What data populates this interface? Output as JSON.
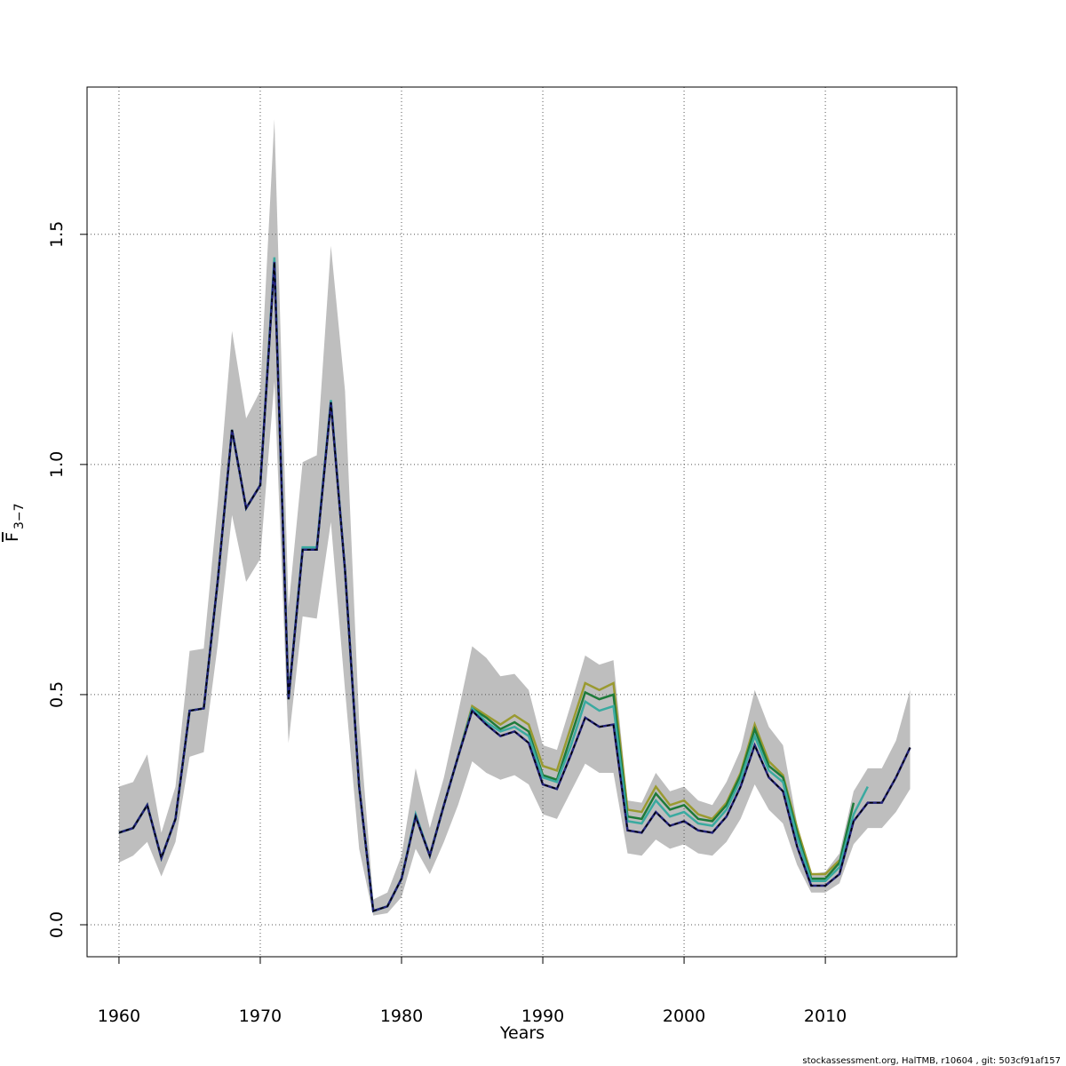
{
  "chart_data": {
    "type": "line",
    "x_label": "Years",
    "y_label": "F",
    "y_label_subscript": "3−7",
    "footer": "stockassessment.org, HalTMB, r10604 , git: 503cf91af157",
    "x": [
      1960,
      1961,
      1962,
      1963,
      1964,
      1965,
      1966,
      1967,
      1968,
      1969,
      1970,
      1971,
      1972,
      1973,
      1974,
      1975,
      1976,
      1977,
      1978,
      1979,
      1980,
      1981,
      1982,
      1983,
      1984,
      1985,
      1986,
      1987,
      1988,
      1989,
      1990,
      1991,
      1992,
      1993,
      1994,
      1995,
      1996,
      1997,
      1998,
      1999,
      2000,
      2001,
      2002,
      2003,
      2004,
      2005,
      2006,
      2007,
      2008,
      2009,
      2010,
      2011,
      2012,
      2013,
      2014,
      2015,
      2016
    ],
    "band": {
      "color": "#bebebe",
      "upper": [
        0.3,
        0.31,
        0.37,
        0.2,
        0.3,
        0.595,
        0.6,
        0.92,
        1.29,
        1.1,
        1.16,
        1.75,
        0.69,
        1.005,
        1.02,
        1.475,
        1.16,
        0.44,
        0.055,
        0.07,
        0.15,
        0.34,
        0.21,
        0.32,
        0.46,
        0.605,
        0.58,
        0.54,
        0.545,
        0.51,
        0.39,
        0.38,
        0.48,
        0.585,
        0.565,
        0.575,
        0.27,
        0.265,
        0.33,
        0.29,
        0.3,
        0.27,
        0.26,
        0.31,
        0.38,
        0.51,
        0.43,
        0.39,
        0.22,
        0.11,
        0.115,
        0.155,
        0.29,
        0.34,
        0.34,
        0.4,
        0.51
      ],
      "lower": [
        0.135,
        0.15,
        0.18,
        0.105,
        0.18,
        0.365,
        0.375,
        0.61,
        0.89,
        0.745,
        0.795,
        1.18,
        0.395,
        0.67,
        0.665,
        0.875,
        0.51,
        0.165,
        0.02,
        0.025,
        0.06,
        0.165,
        0.11,
        0.18,
        0.26,
        0.355,
        0.33,
        0.315,
        0.325,
        0.305,
        0.24,
        0.23,
        0.29,
        0.35,
        0.33,
        0.33,
        0.155,
        0.15,
        0.185,
        0.165,
        0.175,
        0.155,
        0.15,
        0.18,
        0.23,
        0.305,
        0.25,
        0.22,
        0.13,
        0.07,
        0.07,
        0.09,
        0.175,
        0.21,
        0.21,
        0.245,
        0.295
      ]
    },
    "series": [
      {
        "color": "#9a9a30",
        "values": [
          0.2,
          0.21,
          0.26,
          0.145,
          0.23,
          0.465,
          0.47,
          0.75,
          1.075,
          0.905,
          0.955,
          1.44,
          0.49,
          0.815,
          0.815,
          1.135,
          0.77,
          0.3,
          0.03,
          0.04,
          0.1,
          0.235,
          0.15,
          0.26,
          0.365,
          0.475,
          0.455,
          0.435,
          0.455,
          0.435,
          0.345,
          0.335,
          0.43,
          0.525,
          0.51,
          0.525,
          0.25,
          0.245,
          0.3,
          0.26,
          0.27,
          0.24,
          0.23,
          0.265,
          0.33,
          0.435,
          0.355,
          0.325,
          0.21,
          0.11,
          0.11,
          0.14,
          null,
          null,
          null,
          null,
          null
        ]
      },
      {
        "color": "#1e7a3a",
        "values": [
          0.2,
          0.21,
          0.26,
          0.145,
          0.23,
          0.465,
          0.47,
          0.75,
          1.075,
          0.905,
          0.955,
          1.44,
          0.49,
          0.815,
          0.815,
          1.135,
          0.77,
          0.3,
          0.03,
          0.04,
          0.1,
          0.235,
          0.15,
          0.26,
          0.365,
          0.47,
          0.45,
          0.425,
          0.44,
          0.42,
          0.325,
          0.315,
          0.41,
          0.505,
          0.49,
          0.5,
          0.235,
          0.23,
          0.285,
          0.25,
          0.26,
          0.23,
          0.225,
          0.26,
          0.325,
          0.425,
          0.345,
          0.32,
          0.2,
          0.1,
          0.1,
          0.135,
          0.265,
          null,
          null,
          null,
          null
        ]
      },
      {
        "color": "#3aaaa0",
        "values": [
          0.2,
          0.21,
          0.26,
          0.145,
          0.23,
          0.465,
          0.47,
          0.75,
          1.075,
          0.905,
          0.955,
          1.45,
          0.49,
          0.82,
          0.82,
          1.14,
          0.77,
          0.3,
          0.03,
          0.04,
          0.1,
          0.24,
          0.15,
          0.26,
          0.365,
          0.47,
          0.44,
          0.42,
          0.43,
          0.41,
          0.32,
          0.31,
          0.39,
          0.485,
          0.465,
          0.475,
          0.225,
          0.22,
          0.27,
          0.235,
          0.245,
          0.22,
          0.215,
          0.25,
          0.315,
          0.41,
          0.335,
          0.31,
          0.19,
          0.095,
          0.095,
          0.125,
          0.24,
          0.3,
          null,
          null,
          null
        ]
      },
      {
        "color": "#23237a",
        "overlay_color": "#000000",
        "values": [
          0.2,
          0.21,
          0.26,
          0.145,
          0.23,
          0.465,
          0.47,
          0.75,
          1.075,
          0.905,
          0.955,
          1.44,
          0.49,
          0.815,
          0.815,
          1.135,
          0.77,
          0.3,
          0.03,
          0.04,
          0.1,
          0.235,
          0.15,
          0.26,
          0.365,
          0.465,
          0.435,
          0.41,
          0.42,
          0.395,
          0.305,
          0.295,
          0.37,
          0.45,
          0.43,
          0.435,
          0.205,
          0.2,
          0.245,
          0.215,
          0.225,
          0.205,
          0.2,
          0.235,
          0.3,
          0.39,
          0.32,
          0.29,
          0.17,
          0.085,
          0.085,
          0.11,
          0.225,
          0.265,
          0.265,
          0.32,
          0.385
        ]
      }
    ],
    "xlim": [
      1957.74,
      2019.3
    ],
    "ylim": [
      -0.0695,
      1.82
    ],
    "xticks": [
      1960,
      1970,
      1980,
      1990,
      2000,
      2010
    ],
    "yticks": [
      {
        "value": 0,
        "label": "0.0"
      },
      0.5,
      {
        "value": 1,
        "label": "1.0"
      },
      1.5
    ],
    "grid": true
  }
}
